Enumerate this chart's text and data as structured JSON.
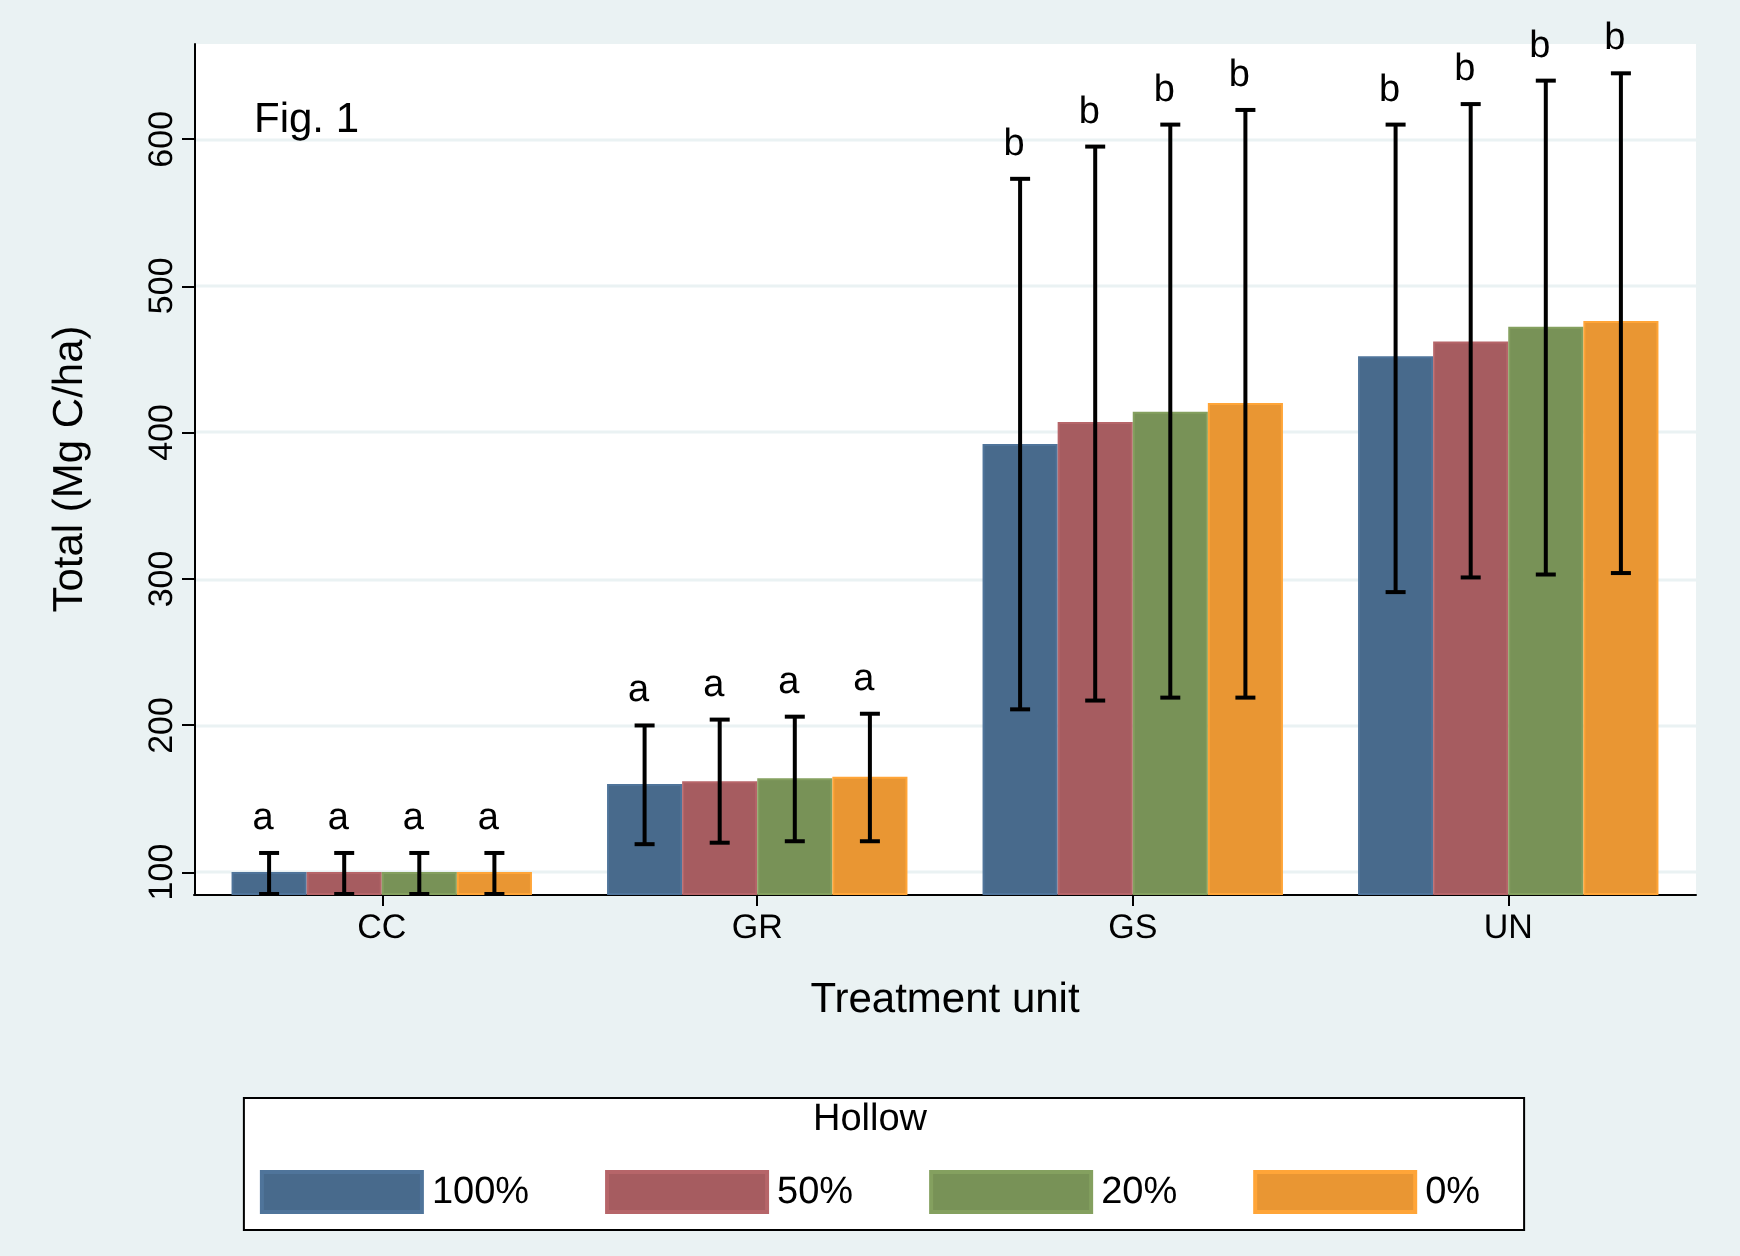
{
  "chart_data": {
    "type": "bar",
    "title": "Fig. 1",
    "xlabel": "Treatment unit",
    "ylabel": "Total (Mg C/ha)",
    "legend_title": "Hollow",
    "categories": [
      "CC",
      "GR",
      "GS",
      "UN"
    ],
    "series": [
      {
        "name": "100%",
        "color": "#486a8c",
        "values": [
          100,
          160,
          392,
          452
        ],
        "errors": [
          [
            85,
            113
          ],
          [
            119,
            200
          ],
          [
            211,
            573
          ],
          [
            291,
            610
          ]
        ]
      },
      {
        "name": "50%",
        "color": "#a65c60",
        "values": [
          100,
          162,
          407,
          462
        ],
        "errors": [
          [
            85,
            113
          ],
          [
            120,
            204
          ],
          [
            217,
            595
          ],
          [
            301,
            624
          ]
        ]
      },
      {
        "name": "20%",
        "color": "#789257",
        "values": [
          100,
          164,
          414,
          472
        ],
        "errors": [
          [
            85,
            113
          ],
          [
            121,
            206
          ],
          [
            219,
            610
          ],
          [
            303,
            640
          ]
        ]
      },
      {
        "name": "0%",
        "color": "#e99633",
        "values": [
          100,
          165,
          420,
          476
        ],
        "errors": [
          [
            85,
            113
          ],
          [
            121,
            208
          ],
          [
            219,
            620
          ],
          [
            304,
            645
          ]
        ]
      }
    ],
    "annotations": [
      "a",
      "a",
      "a",
      "a",
      "a",
      "a",
      "a",
      "a",
      "b",
      "b",
      "b",
      "b",
      "b",
      "b",
      "b",
      "b"
    ],
    "ylim": [
      85,
      665
    ],
    "yticks": [
      100,
      200,
      300,
      400,
      500,
      600
    ],
    "grid": "y",
    "legend": "bottom"
  }
}
